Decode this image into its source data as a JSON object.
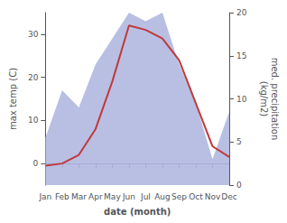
{
  "chart_data": {
    "type": "line",
    "categories": [
      "Jan",
      "Feb",
      "Mar",
      "Apr",
      "May",
      "Jun",
      "Jul",
      "Aug",
      "Sep",
      "Oct",
      "Nov",
      "Dec"
    ],
    "series": [
      {
        "type": "area",
        "color": "#b0b8e0",
        "axis": "y2",
        "values": [
          5.5,
          11.0,
          9.0,
          14.0,
          17.0,
          20.0,
          19.0,
          20.0,
          14.0,
          9.5,
          3.0,
          8.5
        ]
      },
      {
        "type": "line",
        "color": "#c0393b",
        "values": [
          -0.5,
          0.0,
          2.0,
          8.0,
          19.0,
          32.0,
          31.0,
          29.0,
          24.0,
          14.0,
          4.0,
          1.5
        ]
      }
    ],
    "xlabel": "date (month)",
    "ylabel": "max temp (C)",
    "y2label": "med. precipitation\n(kg/m2)",
    "ylim": [
      -5,
      35
    ],
    "yticks": [
      0,
      10,
      20,
      30
    ],
    "y2lim": [
      0,
      20
    ],
    "y2ticks": [
      0,
      5,
      10,
      15,
      20
    ],
    "grid": false
  }
}
